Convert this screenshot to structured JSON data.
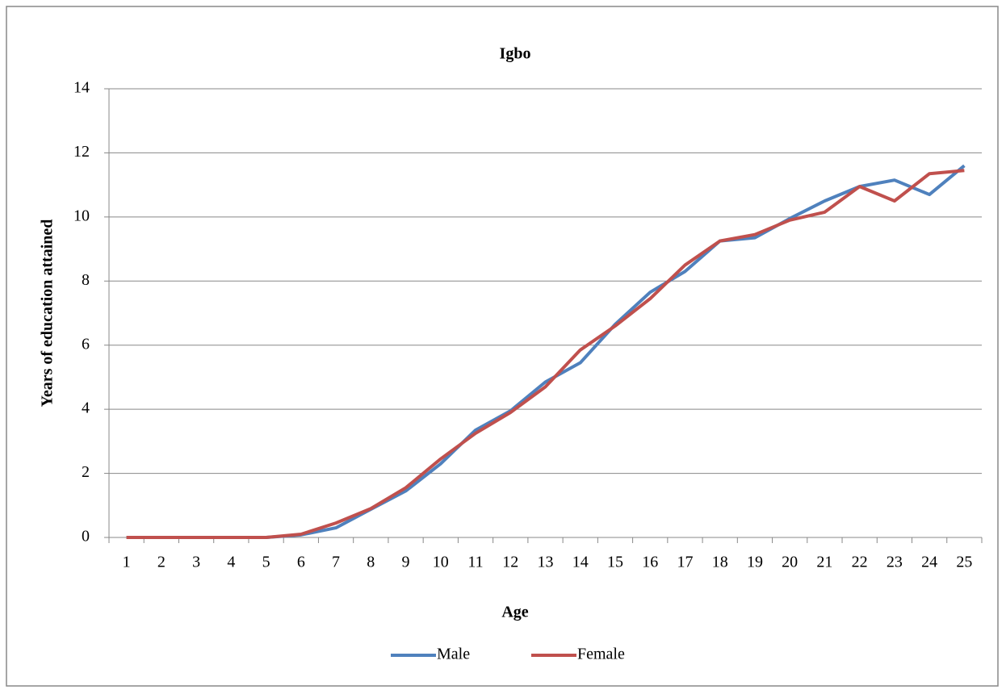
{
  "chart_data": {
    "type": "line",
    "title": "Igbo",
    "x_label": "Age",
    "y_label": "Years of education attained",
    "categories": [
      1,
      2,
      3,
      4,
      5,
      6,
      7,
      8,
      9,
      10,
      11,
      12,
      13,
      14,
      15,
      16,
      17,
      18,
      19,
      20,
      21,
      22,
      23,
      24,
      25
    ],
    "series": [
      {
        "name": "Male",
        "color": "#4f81bd",
        "values": [
          0,
          0,
          0,
          0,
          0,
          0.08,
          0.3,
          0.88,
          1.45,
          2.3,
          3.35,
          3.95,
          4.85,
          5.45,
          6.65,
          7.65,
          8.3,
          9.25,
          9.35,
          9.95,
          10.5,
          10.95,
          11.15,
          10.7,
          11.6
        ]
      },
      {
        "name": "Female",
        "color": "#c0504d",
        "values": [
          0,
          0,
          0,
          0,
          0,
          0.1,
          0.45,
          0.9,
          1.55,
          2.45,
          3.25,
          3.9,
          4.7,
          5.85,
          6.6,
          7.45,
          8.5,
          9.25,
          9.45,
          9.9,
          10.15,
          10.95,
          10.5,
          11.35,
          11.45
        ]
      }
    ],
    "ylim": [
      0,
      14
    ],
    "yticks": [
      0,
      2,
      4,
      6,
      8,
      10,
      12,
      14
    ],
    "grid": true,
    "legend": "bottom"
  }
}
